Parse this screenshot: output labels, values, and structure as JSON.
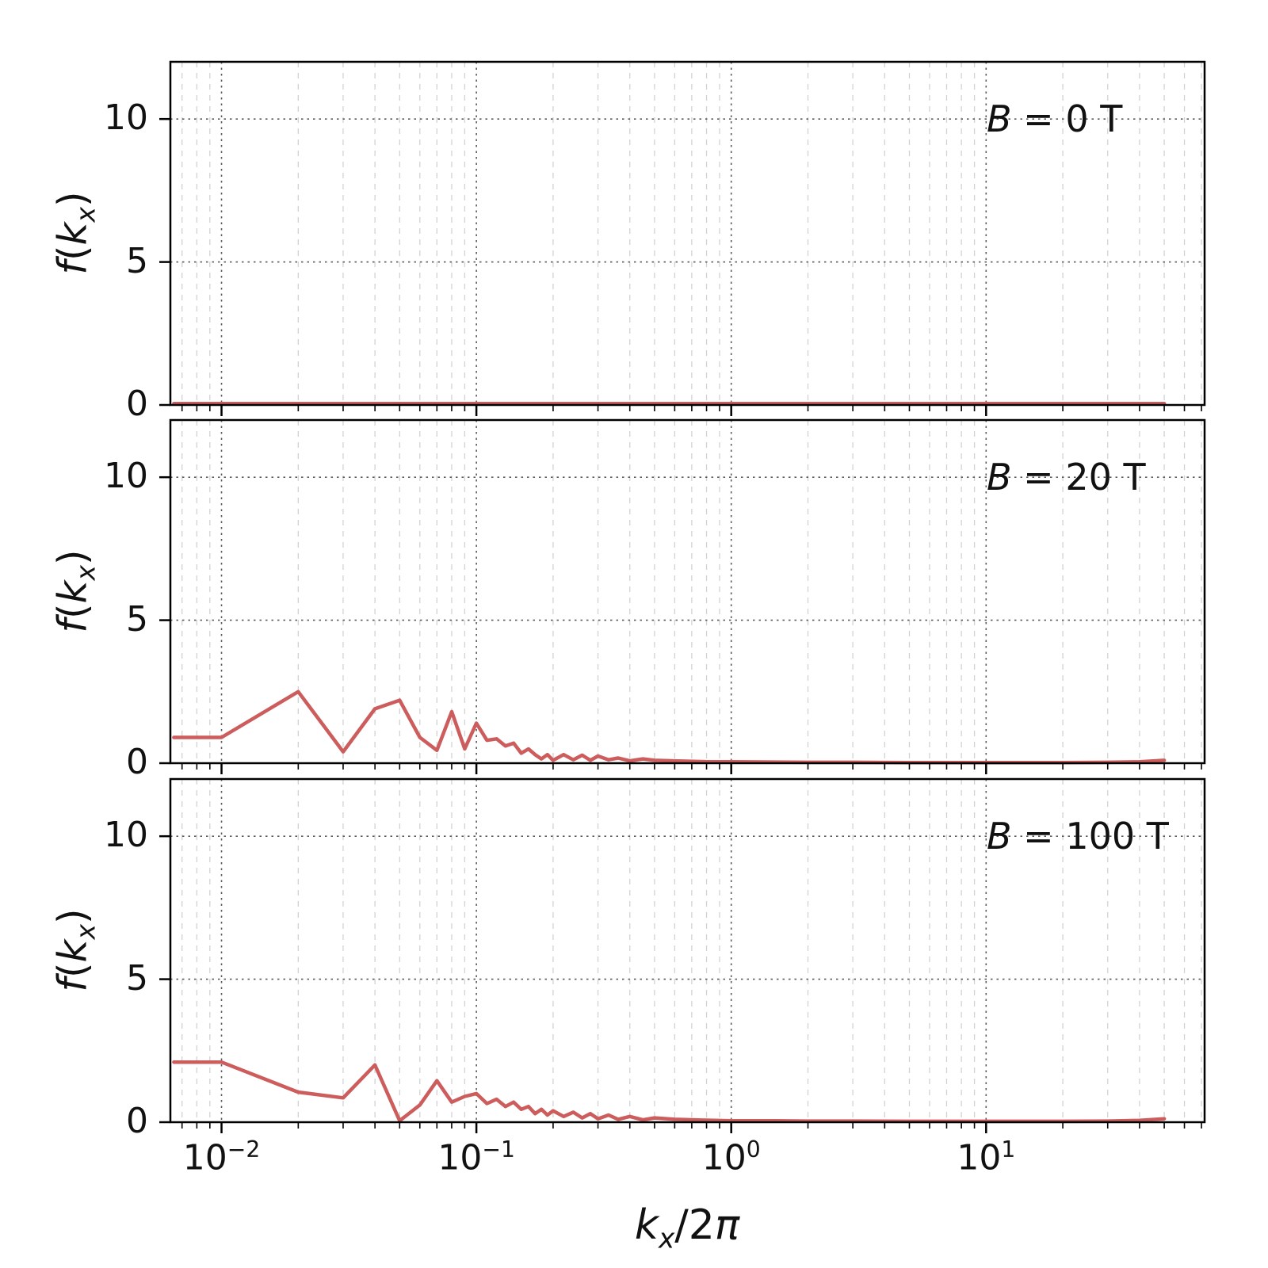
{
  "figure": {
    "background": "#ffffff",
    "line_color": "#cd5c5c",
    "grid_major_color": "#5a5a5a",
    "grid_minor_color": "#d2d2d2",
    "spine_color": "#000000"
  },
  "axes": {
    "xscale": "log",
    "xlim": [
      0.0063,
      72
    ],
    "ylim": [
      0,
      12
    ],
    "xlabel": {
      "p1": "k",
      "sub": "x",
      "p2": "/2",
      "p3": "π"
    },
    "ylabel": {
      "p1": "f",
      "p2": "(",
      "p3": "k",
      "sub": "x",
      "p4": ")"
    },
    "x_ticks": [
      {
        "value": 0.01,
        "base": "10",
        "exp": "−2"
      },
      {
        "value": 0.1,
        "base": "10",
        "exp": "−1"
      },
      {
        "value": 1,
        "base": "10",
        "exp": "0"
      },
      {
        "value": 10,
        "base": "10",
        "exp": "1"
      }
    ],
    "y_ticks": [
      {
        "value": 0,
        "label": "0"
      },
      {
        "value": 5,
        "label": "5"
      },
      {
        "value": 10,
        "label": "10"
      }
    ]
  },
  "chart_data": [
    {
      "type": "line",
      "name": "B = 0 T",
      "annotation": {
        "var": "B",
        "rest": " = 0 T"
      },
      "x": [
        0.0065,
        0.01,
        0.02,
        0.03,
        0.04,
        0.05,
        0.06,
        0.07,
        0.08,
        0.09,
        0.1,
        0.11,
        0.12,
        0.13,
        0.14,
        0.15,
        0.16,
        0.17,
        0.18,
        0.19,
        0.2,
        0.22,
        0.24,
        0.26,
        0.28,
        0.3,
        0.33,
        0.36,
        0.4,
        0.45,
        0.5,
        0.6,
        0.8,
        1.0,
        1.5,
        2.0,
        3.0,
        5.0,
        7.0,
        10,
        15,
        20,
        30,
        40,
        50
      ],
      "y": [
        0.05,
        0.05,
        0.05,
        0.05,
        0.05,
        0.05,
        0.05,
        0.05,
        0.05,
        0.05,
        0.05,
        0.05,
        0.05,
        0.05,
        0.05,
        0.05,
        0.05,
        0.05,
        0.05,
        0.05,
        0.05,
        0.05,
        0.05,
        0.05,
        0.05,
        0.05,
        0.05,
        0.05,
        0.05,
        0.05,
        0.05,
        0.05,
        0.05,
        0.05,
        0.05,
        0.05,
        0.05,
        0.05,
        0.05,
        0.05,
        0.05,
        0.05,
        0.05,
        0.05,
        0.05
      ]
    },
    {
      "type": "line",
      "name": "B = 20 T",
      "annotation": {
        "var": "B",
        "rest": " = 20 T"
      },
      "x": [
        0.0065,
        0.01,
        0.02,
        0.03,
        0.04,
        0.05,
        0.06,
        0.07,
        0.08,
        0.09,
        0.1,
        0.11,
        0.12,
        0.13,
        0.14,
        0.15,
        0.16,
        0.17,
        0.18,
        0.19,
        0.2,
        0.22,
        0.24,
        0.26,
        0.28,
        0.3,
        0.33,
        0.36,
        0.4,
        0.45,
        0.5,
        0.6,
        0.8,
        1.0,
        1.5,
        2.0,
        3.0,
        5.0,
        7.0,
        10,
        15,
        20,
        30,
        40,
        50
      ],
      "y": [
        0.9,
        0.9,
        2.5,
        0.4,
        1.9,
        2.2,
        0.9,
        0.45,
        1.8,
        0.5,
        1.4,
        0.8,
        0.85,
        0.6,
        0.7,
        0.35,
        0.5,
        0.3,
        0.15,
        0.3,
        0.1,
        0.3,
        0.12,
        0.28,
        0.1,
        0.25,
        0.12,
        0.18,
        0.08,
        0.15,
        0.1,
        0.08,
        0.05,
        0.05,
        0.04,
        0.03,
        0.03,
        0.02,
        0.02,
        0.02,
        0.02,
        0.02,
        0.03,
        0.05,
        0.1
      ]
    },
    {
      "type": "line",
      "name": "B = 100 T",
      "annotation": {
        "var": "B",
        "rest": " = 100 T"
      },
      "x": [
        0.0065,
        0.01,
        0.02,
        0.03,
        0.04,
        0.05,
        0.06,
        0.07,
        0.08,
        0.09,
        0.1,
        0.11,
        0.12,
        0.13,
        0.14,
        0.15,
        0.16,
        0.17,
        0.18,
        0.19,
        0.2,
        0.22,
        0.24,
        0.26,
        0.28,
        0.3,
        0.33,
        0.36,
        0.4,
        0.45,
        0.5,
        0.6,
        0.8,
        1.0,
        1.5,
        2.0,
        3.0,
        5.0,
        7.0,
        10,
        15,
        20,
        30,
        40,
        50
      ],
      "y": [
        2.1,
        2.1,
        1.05,
        0.85,
        2.0,
        0.05,
        0.6,
        1.45,
        0.7,
        0.9,
        1.0,
        0.65,
        0.8,
        0.55,
        0.7,
        0.45,
        0.55,
        0.3,
        0.45,
        0.25,
        0.4,
        0.2,
        0.35,
        0.15,
        0.3,
        0.12,
        0.25,
        0.1,
        0.2,
        0.08,
        0.15,
        0.1,
        0.07,
        0.05,
        0.05,
        0.04,
        0.04,
        0.03,
        0.03,
        0.03,
        0.03,
        0.03,
        0.04,
        0.06,
        0.12
      ]
    }
  ]
}
